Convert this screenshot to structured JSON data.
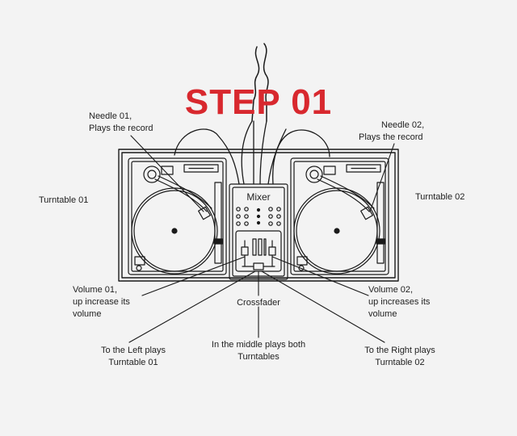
{
  "title": "STEP 01",
  "title_color": "#d8282e",
  "stroke_color": "#1a1a1a",
  "background_color": "#f3f3f3",
  "mixer_label": "Mixer",
  "labels": {
    "needle_left": [
      "Needle 01,",
      "Plays the record"
    ],
    "needle_right": [
      "Needle 02,",
      "Plays the record"
    ],
    "turntable_left": [
      "Turntable 01"
    ],
    "turntable_right": [
      "Turntable 02"
    ],
    "volume_left": [
      "Volume 01,",
      "up increase its",
      "volume"
    ],
    "volume_right": [
      "Volume 02,",
      "up increases its",
      "volume"
    ],
    "crossfader": [
      "Crossfader"
    ],
    "xfader_left": [
      "To the Left plays",
      "Turntable 01"
    ],
    "xfader_middle": [
      "In the middle plays both",
      "Turntables"
    ],
    "xfader_right": [
      "To the Right plays",
      "Turntable 02"
    ]
  }
}
